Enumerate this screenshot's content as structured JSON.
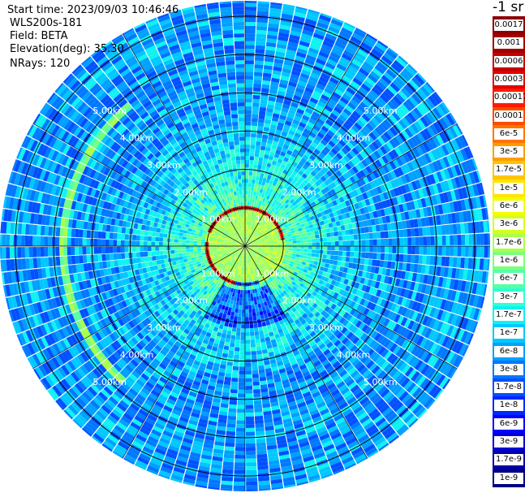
{
  "header": {
    "start_time": "Start time: 2023/09/03 10:46:46",
    "device": "WLS200s-181",
    "field": "Field: BETA",
    "elevation": "Elevation(deg): 35.30",
    "nrays": "NRays: 120"
  },
  "plot": {
    "nrays": 120,
    "max_range_km": 6.4,
    "range_ring_km": [
      1,
      2,
      3,
      4,
      5,
      6
    ],
    "range_labels": [
      "1.00km",
      "2.00km",
      "3.00km",
      "4.00km",
      "5.00km"
    ],
    "dense_ring_km": 0.95,
    "arc_ring_km": 4.75,
    "colors": {
      "background": "#ffffff",
      "grid": "#000000",
      "range_label": "#ffffff",
      "noise": "#1a5cff",
      "aerosol": "#36c3ff",
      "cloud_edge": "#c40000"
    }
  },
  "colorbar": {
    "title": "-1 sr",
    "cells": [
      {
        "label": "0.0017",
        "color": "#8b0000"
      },
      {
        "label": "0.001",
        "color": "#a20000"
      },
      {
        "label": "0.0006",
        "color": "#c40000"
      },
      {
        "label": "0.0003",
        "color": "#e00000"
      },
      {
        "label": "0.00017",
        "color": "#ff1a00"
      },
      {
        "label": "0.0001",
        "color": "#ff4b00"
      },
      {
        "label": "6e-5",
        "color": "#ff7300"
      },
      {
        "label": "3e-5",
        "color": "#ff9c00"
      },
      {
        "label": "1.7e-5",
        "color": "#ffc400"
      },
      {
        "label": "1e-5",
        "color": "#ffe600"
      },
      {
        "label": "6e-6",
        "color": "#f2ff00"
      },
      {
        "label": "3e-6",
        "color": "#d4ff1f"
      },
      {
        "label": "1.7e-6",
        "color": "#aaff4d"
      },
      {
        "label": "1e-6",
        "color": "#7cff7a"
      },
      {
        "label": "6e-7",
        "color": "#55ffa6"
      },
      {
        "label": "3e-7",
        "color": "#30ffd0"
      },
      {
        "label": "1.7e-7",
        "color": "#0ff2f2"
      },
      {
        "label": "1e-7",
        "color": "#00c8ff"
      },
      {
        "label": "6e-8",
        "color": "#00a0ff"
      },
      {
        "label": "3e-8",
        "color": "#0078ff"
      },
      {
        "label": "1.7e-8",
        "color": "#0050ff"
      },
      {
        "label": "1e-8",
        "color": "#0028ff"
      },
      {
        "label": "6e-9",
        "color": "#0000ff"
      },
      {
        "label": "3e-9",
        "color": "#0000d2"
      },
      {
        "label": "1.7e-9",
        "color": "#0000a8"
      },
      {
        "label": "1e-9",
        "color": "#00007f"
      }
    ]
  }
}
